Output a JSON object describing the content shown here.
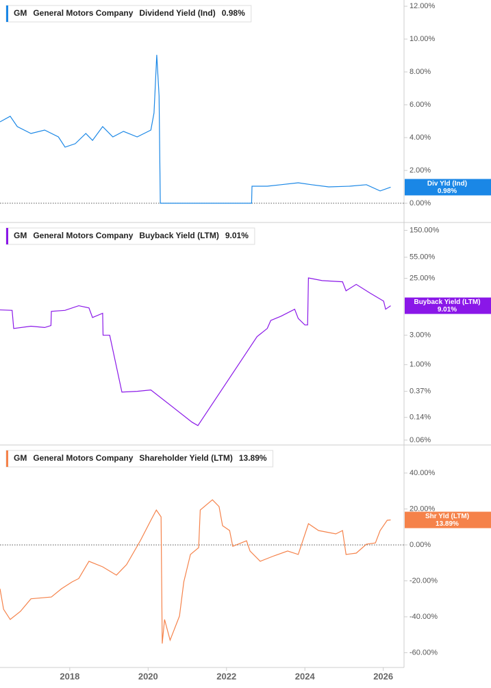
{
  "chart_data": [
    {
      "type": "line",
      "ticker": "GM",
      "company": "General Motors Company",
      "xlim": [
        2016.22,
        2026.53
      ],
      "ylim": [
        -1.17,
        12.38
      ],
      "yticks": [
        {
          "value": 0,
          "label": "0.00%"
        },
        {
          "value": 2,
          "label": "2.00%"
        },
        {
          "value": 4,
          "label": "4.00%"
        },
        {
          "value": 6,
          "label": "6.00%"
        },
        {
          "value": 8,
          "label": "8.00%"
        },
        {
          "value": 10,
          "label": "10.00%"
        },
        {
          "value": 12,
          "label": "12.00%"
        }
      ],
      "x": [
        2016.22,
        2016.48,
        2016.66,
        2017.01,
        2017.36,
        2017.71,
        2017.88,
        2018.14,
        2018.41,
        2018.58,
        2018.84,
        2019.1,
        2019.37,
        2019.72,
        2020.07,
        2020.15,
        2020.22,
        2020.28,
        2020.31,
        2022.64,
        2022.65,
        2023.04,
        2023.39,
        2023.83,
        2024.17,
        2024.61,
        2025.14,
        2025.57,
        2025.92,
        2026.19
      ],
      "series": [
        {
          "name": "Dividend Yield (Ind)",
          "short_name": "Div Yld (Ind)",
          "latest": "0.98%",
          "color": "#1a87e6",
          "values": [
            4.96,
            5.3,
            4.67,
            4.25,
            4.46,
            4.04,
            3.42,
            3.63,
            4.25,
            3.83,
            4.67,
            4.04,
            4.38,
            4.04,
            4.46,
            5.5,
            9.04,
            6.54,
            0,
            0,
            1.04,
            1.04,
            1.13,
            1.25,
            1.13,
            1.0,
            1.04,
            1.13,
            0.75,
            0.98
          ]
        }
      ]
    },
    {
      "type": "line",
      "ticker": "GM",
      "company": "General Motors Company",
      "log": true,
      "xlim": [
        2016.22,
        2026.53
      ],
      "ylim": [
        0.05,
        201
      ],
      "yticks": [
        {
          "value": 0.06,
          "label": "0.06%"
        },
        {
          "value": 0.14,
          "label": "0.14%"
        },
        {
          "value": 0.37,
          "label": "0.37%"
        },
        {
          "value": 1,
          "label": "1.00%"
        },
        {
          "value": 3,
          "label": "3.00%"
        },
        {
          "value": 25,
          "label": "25.00%"
        },
        {
          "value": 55,
          "label": "55.00%"
        },
        {
          "value": 150,
          "label": "150.00%"
        }
      ],
      "x": [
        2016.22,
        2016.53,
        2016.57,
        2017.01,
        2017.36,
        2017.52,
        2017.53,
        2017.88,
        2018.23,
        2018.49,
        2018.58,
        2018.84,
        2018.85,
        2019.02,
        2019.33,
        2019.72,
        2020.07,
        2021.12,
        2021.27,
        2022.78,
        2023.04,
        2023.13,
        2023.39,
        2023.74,
        2023.83,
        2024.0,
        2024.07,
        2024.09,
        2024.44,
        2024.96,
        2025.05,
        2025.31,
        2025.66,
        2026.01,
        2026.06,
        2026.19
      ],
      "series": [
        {
          "name": "Buyback Yield (LTM)",
          "short_name": "Buyback Yield (LTM)",
          "latest": "9.01%",
          "color": "#8a17e8",
          "values": [
            7.7,
            7.6,
            3.86,
            4.2,
            4.0,
            4.3,
            7.3,
            7.6,
            9.0,
            8.3,
            5.8,
            6.8,
            3.0,
            3.0,
            0.36,
            0.37,
            0.39,
            0.117,
            0.103,
            2.85,
            3.86,
            5.2,
            6.1,
            7.9,
            5.6,
            4.4,
            4.4,
            25.4,
            23,
            22,
            15.7,
            20,
            14.5,
            10.7,
            7.9,
            9.01
          ]
        }
      ]
    },
    {
      "type": "line",
      "ticker": "GM",
      "company": "General Motors Company",
      "xlim": [
        2016.22,
        2026.53
      ],
      "ylim": [
        -68.2,
        55.6
      ],
      "xticks": [
        2018,
        2020,
        2022,
        2024,
        2026
      ],
      "yticks": [
        {
          "value": -60,
          "label": "-60.00%"
        },
        {
          "value": -40,
          "label": "-40.00%"
        },
        {
          "value": -20,
          "label": "-20.00%"
        },
        {
          "value": 0,
          "label": "0.00%"
        },
        {
          "value": 20,
          "label": "20.00%"
        },
        {
          "value": 40,
          "label": "40.00%"
        }
      ],
      "x": [
        2016.22,
        2016.31,
        2016.48,
        2016.74,
        2017.01,
        2017.53,
        2017.79,
        2018.06,
        2018.23,
        2018.49,
        2018.84,
        2019.19,
        2019.45,
        2019.8,
        2020.07,
        2020.21,
        2020.33,
        2020.36,
        2020.42,
        2020.56,
        2020.8,
        2020.91,
        2021.08,
        2021.29,
        2021.33,
        2021.64,
        2021.81,
        2021.9,
        2022.08,
        2022.16,
        2022.51,
        2022.6,
        2022.86,
        2023.21,
        2023.56,
        2023.83,
        2024.09,
        2024.35,
        2024.79,
        2024.96,
        2025.05,
        2025.31,
        2025.57,
        2025.8,
        2025.92,
        2026.1,
        2026.19
      ],
      "series": [
        {
          "name": "Shareholder Yield (LTM)",
          "short_name": "Shr Yld (LTM)",
          "latest": "13.89%",
          "color": "#f5824a",
          "values": [
            -24.4,
            -35.8,
            -41.5,
            -37,
            -30,
            -29,
            -24.4,
            -20.6,
            -18.7,
            -9.1,
            -12.2,
            -16.8,
            -11,
            2.3,
            13.7,
            19.4,
            15.6,
            -54.9,
            -41.5,
            -53,
            -39.6,
            -20.6,
            -5.3,
            -1.5,
            19.4,
            25.1,
            21.3,
            10.7,
            8,
            -0.8,
            2.3,
            -3.4,
            -9.1,
            -6.1,
            -3.4,
            -5.3,
            11.8,
            8,
            6.1,
            8,
            -5.3,
            -4.6,
            0.4,
            1.1,
            8,
            13.7,
            13.89
          ]
        }
      ]
    }
  ]
}
